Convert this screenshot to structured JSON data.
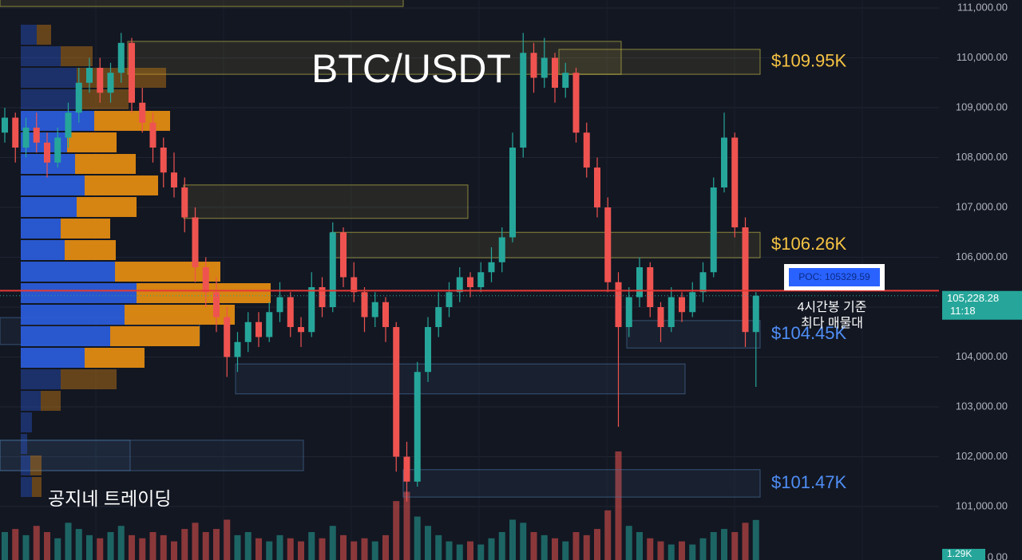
{
  "chart_data": {
    "type": "candlestick",
    "title": "BTC/USDT",
    "watermark": "공지네 트레이딩",
    "note_lines": [
      "4시간봉 기준",
      "최다 매물대"
    ],
    "ylim": [
      99928,
      111160
    ],
    "yticks": [
      {
        "value": 111000,
        "label": "111,000.00"
      },
      {
        "value": 110000,
        "label": "110,000.00"
      },
      {
        "value": 109000,
        "label": "109,000.00"
      },
      {
        "value": 108000,
        "label": "108,000.00"
      },
      {
        "value": 107000,
        "label": "107,000.00"
      },
      {
        "value": 106000,
        "label": "106,000.00"
      },
      {
        "value": 105000,
        "label": "105,000.00"
      },
      {
        "value": 104000,
        "label": "104,000.00"
      },
      {
        "value": 103000,
        "label": "103,000.00"
      },
      {
        "value": 102000,
        "label": "102,000.00"
      },
      {
        "value": 101000,
        "label": "101,000.00"
      }
    ],
    "grid": true,
    "up_color": "#26a69a",
    "down_color": "#ef5350",
    "candles": [
      [
        108500,
        109000,
        108300,
        108800
      ],
      [
        108800,
        108900,
        107900,
        108200
      ],
      [
        108200,
        108800,
        108000,
        108600
      ],
      [
        108600,
        108900,
        108100,
        108300
      ],
      [
        108300,
        108500,
        107600,
        107900
      ],
      [
        107900,
        108600,
        107800,
        108400
      ],
      [
        108400,
        109100,
        108200,
        108900
      ],
      [
        108900,
        109800,
        108700,
        109500
      ],
      [
        109500,
        110000,
        109300,
        109800
      ],
      [
        109800,
        110000,
        109100,
        109300
      ],
      [
        109300,
        109900,
        109100,
        109700
      ],
      [
        109700,
        110500,
        109500,
        110300
      ],
      [
        110300,
        110400,
        108900,
        109100
      ],
      [
        109100,
        109400,
        108500,
        108700
      ],
      [
        108700,
        108900,
        107900,
        108200
      ],
      [
        108200,
        108400,
        107400,
        107700
      ],
      [
        107700,
        108100,
        107200,
        107400
      ],
      [
        107400,
        107600,
        106500,
        106800
      ],
      [
        106800,
        107000,
        105500,
        105800
      ],
      [
        105800,
        106000,
        105000,
        105300
      ],
      [
        105300,
        105600,
        104500,
        104800
      ],
      [
        104800,
        105000,
        103600,
        104000
      ],
      [
        104000,
        104500,
        103700,
        104300
      ],
      [
        104300,
        104900,
        104100,
        104700
      ],
      [
        104700,
        104900,
        104200,
        104400
      ],
      [
        104400,
        105100,
        104300,
        104900
      ],
      [
        104900,
        105500,
        104700,
        105200
      ],
      [
        105200,
        105300,
        104400,
        104600
      ],
      [
        104600,
        104800,
        104200,
        104500
      ],
      [
        104500,
        105700,
        104400,
        105400
      ],
      [
        105400,
        105600,
        104800,
        105000
      ],
      [
        105000,
        106700,
        104900,
        106500
      ],
      [
        106500,
        106600,
        105400,
        105600
      ],
      [
        105600,
        105900,
        105100,
        105300
      ],
      [
        105300,
        105400,
        104500,
        104800
      ],
      [
        104800,
        105300,
        104600,
        105100
      ],
      [
        105100,
        105200,
        104300,
        104600
      ],
      [
        104600,
        104700,
        101700,
        102000
      ],
      [
        102000,
        102300,
        101100,
        101500
      ],
      [
        101500,
        103900,
        101400,
        103700
      ],
      [
        103700,
        104800,
        103500,
        104600
      ],
      [
        104600,
        105300,
        104400,
        105000
      ],
      [
        105000,
        105500,
        104800,
        105300
      ],
      [
        105300,
        105800,
        105100,
        105600
      ],
      [
        105600,
        105700,
        105200,
        105400
      ],
      [
        105400,
        105900,
        105300,
        105700
      ],
      [
        105700,
        106200,
        105500,
        105900
      ],
      [
        105900,
        106600,
        105700,
        106400
      ],
      [
        106400,
        108500,
        106300,
        108200
      ],
      [
        108200,
        110500,
        108000,
        110100
      ],
      [
        110100,
        110300,
        109300,
        109600
      ],
      [
        109600,
        110400,
        109400,
        110000
      ],
      [
        110000,
        110100,
        109100,
        109400
      ],
      [
        109400,
        109900,
        109200,
        109700
      ],
      [
        109700,
        109800,
        108300,
        108500
      ],
      [
        108500,
        108700,
        107600,
        107800
      ],
      [
        107800,
        108000,
        106800,
        107000
      ],
      [
        107000,
        107200,
        105300,
        105500
      ],
      [
        105500,
        105700,
        102600,
        104600
      ],
      [
        104600,
        105400,
        104400,
        105200
      ],
      [
        105200,
        106000,
        105000,
        105800
      ],
      [
        105800,
        105900,
        104800,
        105000
      ],
      [
        105000,
        105100,
        104300,
        104600
      ],
      [
        104600,
        105400,
        104500,
        105200
      ],
      [
        105200,
        105300,
        104700,
        104900
      ],
      [
        104900,
        105500,
        104800,
        105300
      ],
      [
        105300,
        105900,
        105100,
        105700
      ],
      [
        105700,
        107600,
        105600,
        107400
      ],
      [
        107400,
        108900,
        107300,
        108400
      ],
      [
        108400,
        108500,
        106400,
        106600
      ],
      [
        106600,
        106800,
        104200,
        104500
      ],
      [
        104500,
        105300,
        103400,
        105228.28
      ]
    ],
    "volume": [
      0.9,
      1.0,
      0.8,
      1.1,
      0.9,
      0.7,
      1.2,
      1.0,
      0.8,
      0.7,
      0.9,
      1.1,
      0.8,
      0.7,
      0.9,
      0.8,
      0.6,
      1.0,
      1.2,
      0.9,
      1.0,
      1.3,
      0.8,
      0.9,
      0.7,
      0.6,
      0.8,
      0.7,
      0.6,
      0.9,
      0.7,
      1.1,
      0.8,
      0.6,
      0.7,
      0.6,
      0.8,
      1.9,
      2.2,
      1.4,
      1.1,
      0.8,
      0.6,
      0.5,
      0.6,
      0.5,
      0.7,
      0.9,
      1.3,
      1.2,
      0.9,
      0.8,
      0.7,
      0.6,
      0.9,
      0.8,
      1.0,
      1.6,
      3.5,
      1.1,
      0.9,
      0.7,
      0.6,
      0.5,
      0.6,
      0.5,
      0.7,
      0.9,
      1.0,
      0.9,
      1.2,
      1.29
    ],
    "volume_label": "1.29K",
    "vlim": [
      0,
      3.6
    ],
    "vticks": [
      {
        "value": 0,
        "label": "0.00"
      }
    ],
    "last_price": {
      "value": 105228.28,
      "label": "105,228.28",
      "countdown": "11:18"
    },
    "poc": {
      "value": 105329.59,
      "label": "POC: 105329.59"
    },
    "volume_profile": {
      "bins": [
        110680,
        110248,
        109816,
        109384,
        108952,
        108520,
        108088,
        107656,
        107224,
        106792,
        106360,
        105928,
        105496,
        105064,
        104632,
        104200,
        103768,
        103336,
        102904,
        102472,
        102040,
        101608,
        101176
      ],
      "up": [
        20,
        50,
        70,
        75,
        92,
        58,
        68,
        80,
        70,
        50,
        55,
        118,
        145,
        130,
        112,
        80,
        50,
        25,
        14,
        8,
        12,
        14
      ],
      "down": [
        18,
        40,
        112,
        60,
        95,
        62,
        76,
        92,
        75,
        62,
        64,
        132,
        168,
        138,
        112,
        75,
        70,
        25,
        0,
        0,
        14,
        12
      ],
      "value_area": [
        103768,
        108952
      ],
      "up_color": "#2a5bd7",
      "down_color": "#e08a12"
    },
    "zones": [
      {
        "top": 111200,
        "bottom": 111030,
        "color": "#d4c84a"
      },
      {
        "top": 110330,
        "bottom": 109670,
        "color": "#d4c84a"
      },
      {
        "top": 110170,
        "bottom": 109670,
        "color": "#d4c84a",
        "label": "$109.95K"
      },
      {
        "top": 107450,
        "bottom": 106780,
        "color": "#d4c84a"
      },
      {
        "top": 106500,
        "bottom": 105990,
        "color": "#d4c84a",
        "label": "$106.26K"
      },
      {
        "top": 104790,
        "bottom": 104250,
        "color": "#4a78a8"
      },
      {
        "top": 104730,
        "bottom": 104180,
        "color": "#4a78a8",
        "label": "$104.45K"
      },
      {
        "top": 103860,
        "bottom": 103260,
        "color": "#4a78a8"
      },
      {
        "top": 102330,
        "bottom": 101720,
        "color": "#4a78a8"
      },
      {
        "top": 102330,
        "bottom": 101720,
        "color": "#4a78a8"
      },
      {
        "top": 101740,
        "bottom": 101190,
        "color": "#4a78a8",
        "label": "$101.47K"
      }
    ],
    "label_colors": {
      "$109.95K": "#f6c343",
      "$106.26K": "#f6c343",
      "$104.45K": "#4f8ef5",
      "$101.47K": "#4f8ef5"
    }
  }
}
